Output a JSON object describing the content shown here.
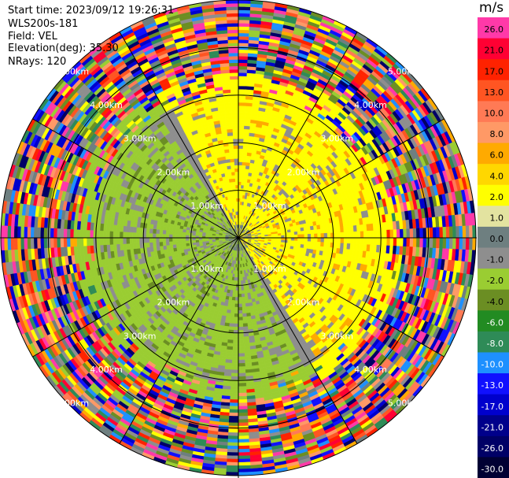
{
  "header": {
    "start_time": "Start time: 2023/09/12 19:26:31",
    "instrument": "WLS200s-181",
    "field": "Field: VEL",
    "elevation": "Elevation(deg): 35.30",
    "nrays": "NRays: 120"
  },
  "chart_data": {
    "type": "heatmap",
    "projection": "polar-ppi",
    "range_ring_labels": [
      "1.00km",
      "2.00km",
      "3.00km",
      "4.00km",
      "5.00km"
    ],
    "colorbar": {
      "unit": "m/s",
      "ticks": [
        "26.0",
        "21.0",
        "17.0",
        "13.0",
        "10.0",
        "8.0",
        "6.0",
        "4.0",
        "2.0",
        "1.0",
        "0.0",
        "-1.0",
        "-2.0",
        "-4.0",
        "-6.0",
        "-8.0",
        "-10.0",
        "-13.0",
        "-17.0",
        "-21.0",
        "-26.0",
        "-30.0"
      ],
      "colors": [
        "#ff39a8",
        "#ff0033",
        "#ff2200",
        "#ff5522",
        "#ff7a55",
        "#ff9966",
        "#ffaa00",
        "#ffd700",
        "#ffff00",
        "#e3e3a0",
        "#6e7f80",
        "#8e8e8e",
        "#9acd32",
        "#6b8e23",
        "#228b22",
        "#2e8b57",
        "#1e90ff",
        "#1010ff",
        "#0000cd",
        "#00008b",
        "#000066",
        "#000033"
      ]
    }
  }
}
